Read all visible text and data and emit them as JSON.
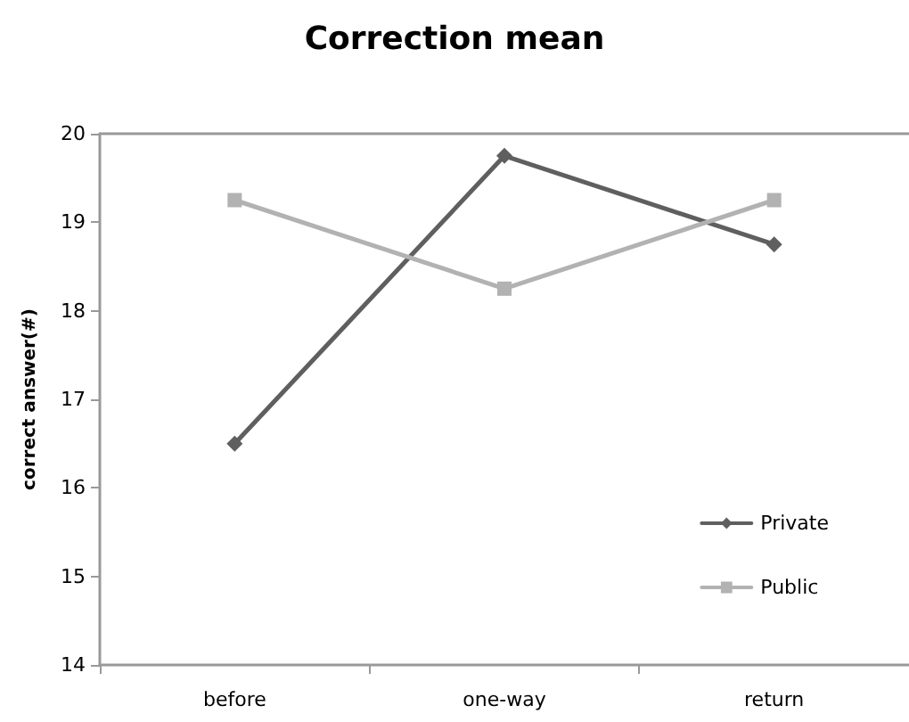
{
  "chart_data": {
    "type": "line",
    "title": "Correction mean",
    "ylabel": "correct answer(#)",
    "categories": [
      "before",
      "one-way",
      "return"
    ],
    "series": [
      {
        "name": "Private",
        "color": "#5f5f5f",
        "marker": "diamond",
        "values": [
          16.5,
          19.75,
          18.75
        ]
      },
      {
        "name": "Public",
        "color": "#b2b2b2",
        "marker": "square",
        "values": [
          19.25,
          18.25,
          19.25
        ]
      }
    ],
    "ylim": [
      14,
      20
    ],
    "yticks": [
      14,
      15,
      16,
      17,
      18,
      19,
      20
    ],
    "grid": false,
    "legend": "bottom right",
    "line_style": "solid"
  }
}
